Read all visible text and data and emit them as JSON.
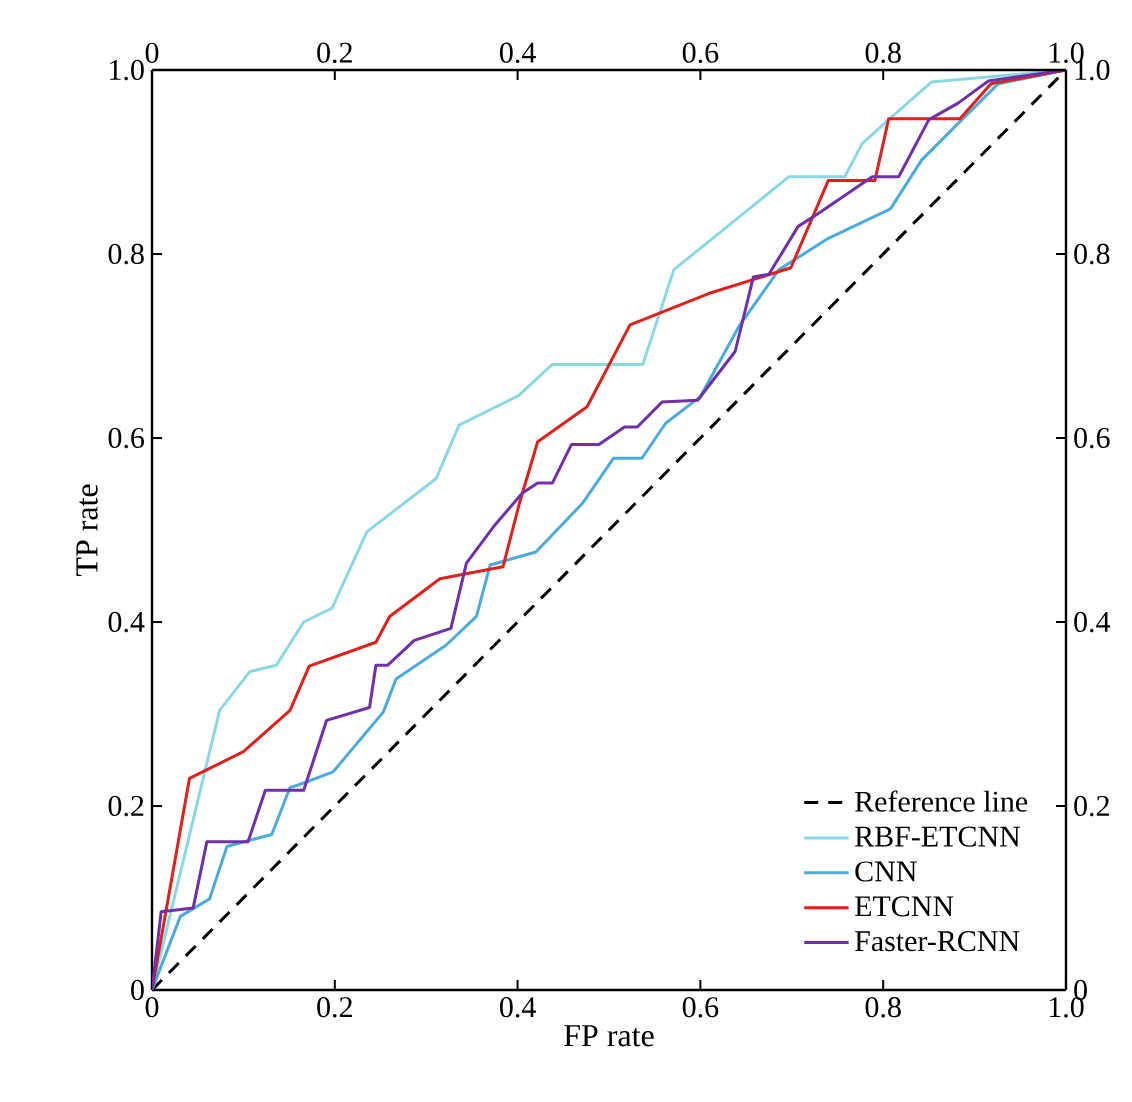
{
  "chart_data": {
    "type": "line",
    "xlabel": "FP rate",
    "ylabel": "TP rate",
    "xlim": [
      0,
      1
    ],
    "ylim": [
      0,
      1
    ],
    "xticks": [
      0,
      0.2,
      0.4,
      0.6,
      0.8,
      {
        "value": 1,
        "label": "1.0"
      }
    ],
    "yticks": [
      0,
      0.2,
      0.4,
      0.6,
      0.8,
      {
        "value": 1,
        "label": "1.0"
      }
    ],
    "x2lim": [
      0,
      1
    ],
    "x2ticks": [
      0,
      0.2,
      0.4,
      0.6,
      0.8,
      {
        "value": 1,
        "label": "1.0"
      }
    ],
    "y2lim": [
      0,
      1
    ],
    "y2ticks": [
      0,
      0.2,
      0.4,
      0.6,
      0.8,
      {
        "value": 1,
        "label": "1.0"
      }
    ],
    "grid": false,
    "legend": "bottom right",
    "marker": "none",
    "series": [
      {
        "name": "Reference line",
        "color": "#000000",
        "line_style": "dashed",
        "x": [
          0,
          1
        ],
        "values": [
          0,
          1
        ]
      },
      {
        "name": "RBF-ETCNN",
        "color": "#8ad8e2",
        "line_style": "solid",
        "x": [
          0,
          0.074,
          0.107,
          0.136,
          0.166,
          0.197,
          0.235,
          0.311,
          0.336,
          0.401,
          0.438,
          0.537,
          0.571,
          0.697,
          0.758,
          0.777,
          0.806,
          0.853,
          1
        ],
        "values": [
          0,
          0.304,
          0.346,
          0.353,
          0.4,
          0.415,
          0.498,
          0.556,
          0.614,
          0.646,
          0.68,
          0.68,
          0.783,
          0.884,
          0.884,
          0.92,
          0.946,
          0.987,
          1
        ]
      },
      {
        "name": "CNN",
        "color": "#4dabdb",
        "line_style": "solid",
        "x": [
          0,
          0.031,
          0.063,
          0.082,
          0.104,
          0.131,
          0.151,
          0.166,
          0.198,
          0.253,
          0.267,
          0.322,
          0.355,
          0.37,
          0.42,
          0.471,
          0.505,
          0.536,
          0.562,
          0.6,
          0.642,
          0.686,
          0.74,
          0.808,
          0.842,
          0.882,
          0.926,
          1
        ],
        "values": [
          0,
          0.08,
          0.099,
          0.156,
          0.162,
          0.169,
          0.22,
          0.225,
          0.237,
          0.302,
          0.338,
          0.375,
          0.406,
          0.462,
          0.476,
          0.529,
          0.578,
          0.578,
          0.616,
          0.645,
          0.721,
          0.783,
          0.817,
          0.849,
          0.902,
          0.942,
          0.985,
          1
        ]
      },
      {
        "name": "ETCNN",
        "color": "#e0201c",
        "line_style": "solid",
        "x": [
          0,
          0.041,
          0.1,
          0.151,
          0.172,
          0.245,
          0.26,
          0.315,
          0.384,
          0.402,
          0.422,
          0.476,
          0.523,
          0.609,
          0.699,
          0.74,
          0.791,
          0.806,
          0.884,
          0.918,
          1
        ],
        "values": [
          0,
          0.23,
          0.259,
          0.304,
          0.352,
          0.378,
          0.406,
          0.447,
          0.46,
          0.529,
          0.596,
          0.634,
          0.723,
          0.757,
          0.785,
          0.88,
          0.88,
          0.947,
          0.947,
          0.985,
          1
        ]
      },
      {
        "name": "Faster-RCNN",
        "color": "#7030a8",
        "line_style": "solid",
        "x": [
          0,
          0.01,
          0.045,
          0.06,
          0.105,
          0.124,
          0.166,
          0.191,
          0.238,
          0.245,
          0.258,
          0.287,
          0.327,
          0.344,
          0.374,
          0.405,
          0.422,
          0.438,
          0.459,
          0.489,
          0.517,
          0.531,
          0.558,
          0.597,
          0.638,
          0.658,
          0.675,
          0.707,
          0.729,
          0.788,
          0.817,
          0.85,
          0.882,
          0.915,
          1
        ],
        "values": [
          0,
          0.085,
          0.089,
          0.161,
          0.161,
          0.217,
          0.217,
          0.293,
          0.307,
          0.353,
          0.353,
          0.38,
          0.393,
          0.464,
          0.504,
          0.54,
          0.551,
          0.551,
          0.593,
          0.593,
          0.612,
          0.612,
          0.639,
          0.641,
          0.694,
          0.775,
          0.778,
          0.83,
          0.844,
          0.884,
          0.884,
          0.946,
          0.964,
          0.988,
          1
        ]
      }
    ]
  }
}
